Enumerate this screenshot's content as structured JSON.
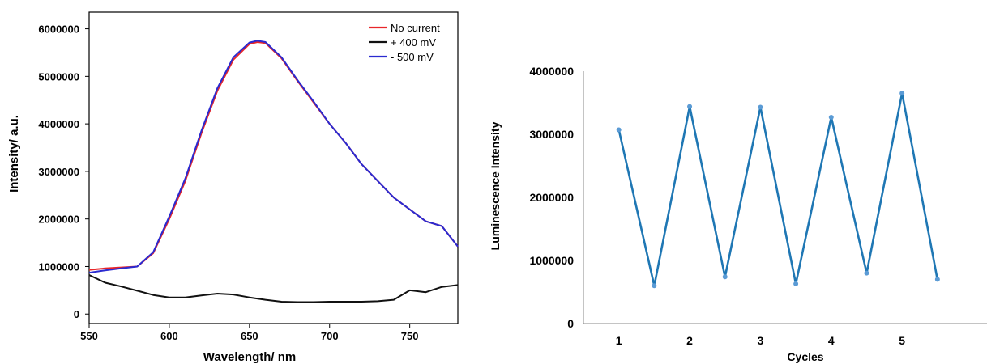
{
  "chart_data": [
    {
      "type": "line",
      "title": "",
      "xlabel": "Wavelength/ nm",
      "ylabel": "Intensity/ a.u.",
      "xlim": [
        550,
        780
      ],
      "ylim": [
        -200000,
        6350000
      ],
      "x_ticks": [
        550,
        600,
        650,
        700,
        750
      ],
      "y_ticks": [
        0,
        1000000,
        2000000,
        3000000,
        4000000,
        5000000,
        6000000
      ],
      "legend_position": "top-right",
      "grid": false,
      "series": [
        {
          "name": "No current",
          "color": "#e8262a",
          "x": [
            550,
            560,
            570,
            580,
            590,
            600,
            610,
            620,
            630,
            640,
            650,
            655,
            660,
            670,
            680,
            690,
            700,
            710,
            720,
            730,
            740,
            750,
            760,
            770,
            780
          ],
          "y": [
            930000,
            960000,
            980000,
            1000000,
            1280000,
            2000000,
            2800000,
            3800000,
            4700000,
            5350000,
            5680000,
            5720000,
            5700000,
            5380000,
            4900000,
            4450000,
            4000000,
            3600000,
            3150000,
            2800000,
            2450000,
            2200000,
            1950000,
            1850000,
            1420000
          ]
        },
        {
          "name": "+ 400 mV",
          "color": "#111111",
          "x": [
            550,
            560,
            570,
            580,
            590,
            600,
            610,
            620,
            630,
            640,
            650,
            660,
            670,
            680,
            690,
            700,
            710,
            720,
            730,
            740,
            750,
            760,
            770,
            780
          ],
          "y": [
            820000,
            660000,
            580000,
            490000,
            400000,
            350000,
            350000,
            390000,
            430000,
            410000,
            350000,
            300000,
            260000,
            250000,
            250000,
            260000,
            260000,
            260000,
            270000,
            300000,
            500000,
            460000,
            570000,
            610000
          ]
        },
        {
          "name": "- 500 mV",
          "color": "#2a2ad0",
          "x": [
            550,
            560,
            570,
            580,
            590,
            600,
            610,
            620,
            630,
            640,
            650,
            655,
            660,
            670,
            680,
            690,
            700,
            710,
            720,
            730,
            740,
            750,
            760,
            770,
            780
          ],
          "y": [
            870000,
            920000,
            960000,
            1000000,
            1300000,
            2050000,
            2850000,
            3850000,
            4750000,
            5400000,
            5710000,
            5750000,
            5720000,
            5400000,
            4920000,
            4470000,
            4000000,
            3600000,
            3150000,
            2800000,
            2450000,
            2200000,
            1950000,
            1850000,
            1420000
          ]
        }
      ]
    },
    {
      "type": "line",
      "title": "",
      "xlabel": "Cycles",
      "ylabel": "Luminescence Intensity",
      "xlim": [
        0.5,
        6.2
      ],
      "ylim": [
        0,
        4000000
      ],
      "x_ticks": [
        1,
        2,
        3,
        4,
        5
      ],
      "y_ticks": [
        0,
        1000000,
        2000000,
        3000000,
        4000000
      ],
      "grid": false,
      "series": [
        {
          "color": "#1f77b4",
          "x": [
            1,
            1.5,
            2,
            2.5,
            3,
            3.5,
            4,
            4.5,
            5,
            5.5
          ],
          "y": [
            3070000,
            600000,
            3440000,
            740000,
            3430000,
            630000,
            3270000,
            800000,
            3650000,
            700000
          ]
        }
      ]
    }
  ]
}
